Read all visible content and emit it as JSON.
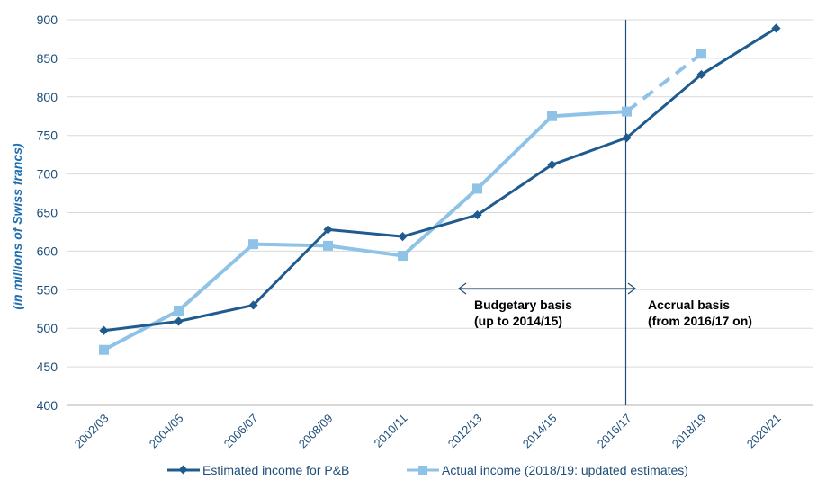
{
  "chart_data": {
    "type": "line",
    "ylabel": "(in millions of Swiss francs)",
    "xlabel": "",
    "categories": [
      "2002/03",
      "2004/05",
      "2006/07",
      "2008/09",
      "2010/11",
      "2012/13",
      "2014/15",
      "2016/17",
      "2018/19",
      "2020/21"
    ],
    "y_ticks": [
      400,
      450,
      500,
      550,
      600,
      650,
      700,
      750,
      800,
      850,
      900
    ],
    "ylim": [
      400,
      900
    ],
    "grid": "horizontal",
    "legend_position": "bottom",
    "series": [
      {
        "name": "Estimated income for P&B",
        "color": "#1f5b8e",
        "marker": "diamond",
        "values": [
          497,
          509,
          530,
          628,
          619,
          647,
          712,
          747,
          829,
          889
        ]
      },
      {
        "name": "Actual income (2018/19: updated estimates)",
        "color": "#8ec2e6",
        "marker": "square",
        "values": [
          472,
          523,
          609,
          607,
          594,
          681,
          775,
          781,
          856,
          null
        ],
        "dashed_from_index": 7
      }
    ],
    "divider_at": "2016/17",
    "annotations": {
      "budgetary_line1": "Budgetary  basis",
      "budgetary_line2": "(up to 2014/15)",
      "accrual_line1": "Accrual basis",
      "accrual_line2": "(from 2016/17 on)"
    }
  }
}
